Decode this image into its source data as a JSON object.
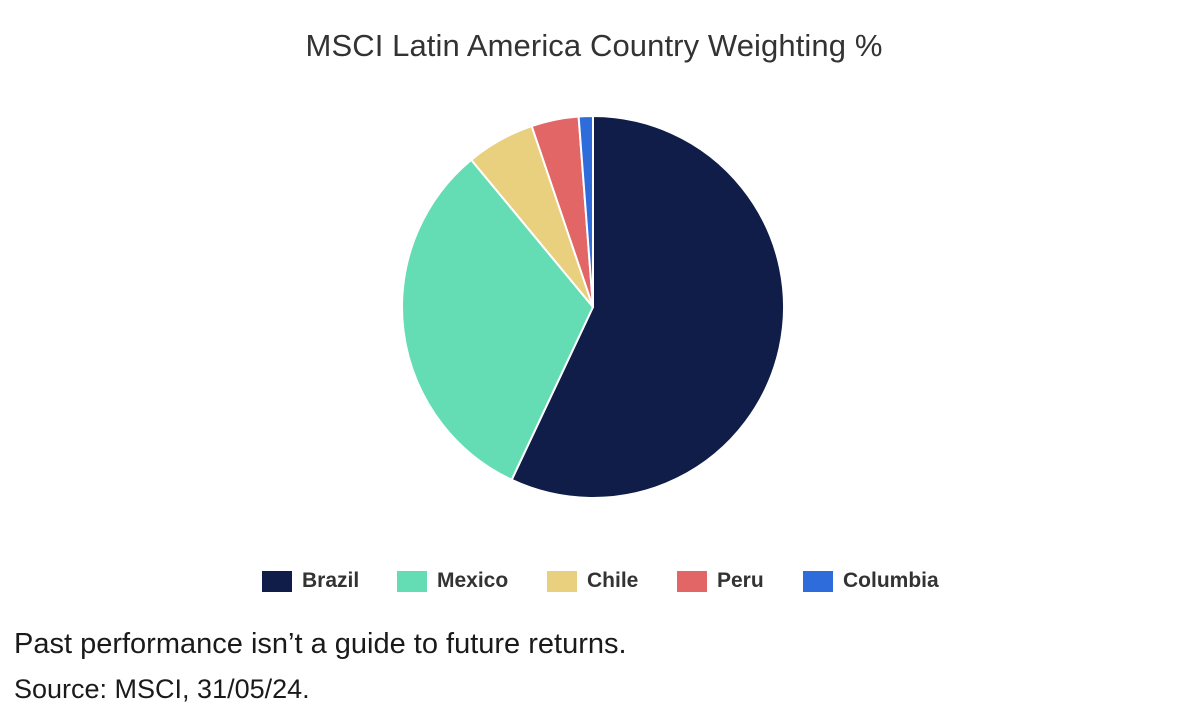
{
  "chart_data": {
    "type": "pie",
    "title": "MSCI Latin America Country Weighting %",
    "categories": [
      "Brazil",
      "Mexico",
      "Chile",
      "Peru",
      "Columbia"
    ],
    "values": [
      57.0,
      32.0,
      5.8,
      4.0,
      1.2
    ],
    "colors": [
      "#0f1d48",
      "#64dcb4",
      "#e9d07e",
      "#e26666",
      "#2e6bdb"
    ],
    "legend_position": "bottom"
  },
  "footer": {
    "note": "Past performance isn’t a guide to future returns.",
    "source": "Source: MSCI, 31/05/24."
  }
}
